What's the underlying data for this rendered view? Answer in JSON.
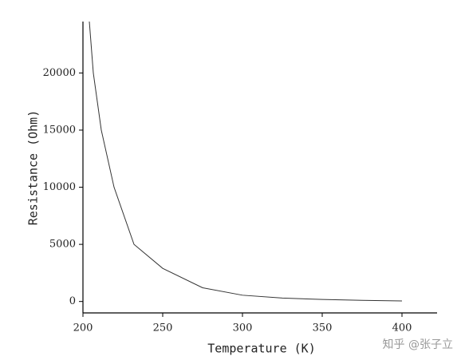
{
  "chart_data": {
    "type": "line",
    "x_label": "Temperature (K)",
    "y_label": "Resistance (Ohm)",
    "watermark": "知乎 @张子立",
    "x": [
      204,
      206.5,
      211.5,
      219.5,
      232,
      250,
      275,
      300,
      325,
      350,
      375,
      400
    ],
    "series": [
      {
        "name": "Resistance",
        "color": "#333333",
        "values": [
          24500,
          20000,
          15000,
          10000,
          5000,
          2900,
          1200,
          550,
          300,
          180,
          100,
          50
        ]
      }
    ],
    "xlim": [
      200,
      422
    ],
    "xticks": [
      200,
      250,
      300,
      350,
      400
    ],
    "ylim": [
      -1000,
      24500
    ],
    "yticks": [
      0,
      5000,
      10000,
      15000,
      20000
    ],
    "grid": false
  }
}
